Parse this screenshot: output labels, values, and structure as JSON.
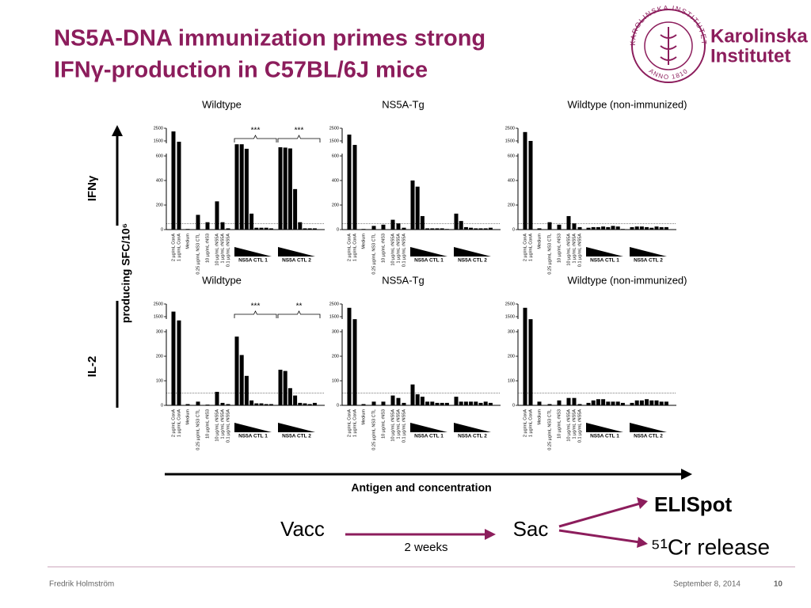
{
  "slide": {
    "title_lines": [
      "NS5A-DNA immunization primes strong",
      "IFNγ-production in C57BL/6J mice"
    ],
    "logo": [
      "Karolinska",
      "Institutet"
    ],
    "seal": [
      "KAROLINSKA INSTITUTET",
      "ANNO 1810"
    ]
  },
  "row_labels": [
    "IFNγ",
    "producing SFC/10⁶",
    "IL-2"
  ],
  "x_axis_label": "Antigen and concentration",
  "flow": {
    "vacc": "Vacc",
    "sac": "Sac",
    "interval": "2 weeks",
    "outputs": [
      "ELISpot",
      "⁵¹Cr release"
    ]
  },
  "footer": {
    "author": "Fredrik Holmström",
    "date": "September 8, 2014",
    "page": "10"
  },
  "chart_data": [
    {
      "type": "bar",
      "title": "Wildtype",
      "categories": [
        "2 µg/mL ConA",
        "1 µg/mL ConA",
        "Medium",
        "0.25 µg/mL NS3 CTL",
        "10 µg/mL rNS3",
        "10 µg/mL rNS5A",
        "1 µg/mL rNS5A",
        "0.1 µg/mL rNS5A",
        null,
        null,
        null,
        null,
        null,
        null,
        null,
        null,
        null,
        null,
        null,
        null,
        null,
        null,
        null,
        null
      ],
      "values": [
        2250,
        1450,
        5,
        120,
        60,
        230,
        60,
        10,
        1300,
        1300,
        1030,
        130,
        15,
        15,
        15,
        10,
        1120,
        1100,
        1050,
        330,
        60,
        10,
        10,
        10
      ],
      "color": "#000000",
      "ylim": [
        0,
        2500
      ],
      "yticks": [
        0,
        200,
        400,
        600,
        1500,
        2500
      ],
      "cutoff": 50,
      "group_labels": [
        "NS5A CTL 1",
        "NS5A CTL 2"
      ],
      "annotations": [
        "***",
        "***"
      ]
    },
    {
      "type": "bar",
      "title": "NS5A-Tg",
      "categories": [
        "2 µg/mL ConA",
        "1 µg/mL ConA",
        "Medium",
        "0.25 µg/mL NS3 CTL",
        "10 µg/mL rNS3",
        "10 µg/mL rNS5A",
        "1 µg/mL rNS5A",
        "0.1 µg/mL rNS5A",
        null,
        null,
        null,
        null,
        null,
        null,
        null,
        null,
        null,
        null,
        null,
        null,
        null,
        null,
        null,
        null
      ],
      "values": [
        2000,
        1260,
        5,
        30,
        40,
        80,
        50,
        15,
        400,
        350,
        110,
        10,
        10,
        10,
        10,
        5,
        130,
        70,
        20,
        15,
        10,
        10,
        10,
        15
      ],
      "color": "#000000",
      "ylim": [
        0,
        2500
      ],
      "yticks": [
        0,
        200,
        400,
        600,
        1500,
        2500
      ],
      "cutoff": 50,
      "group_labels": [
        "NS5A CTL 1",
        "NS5A CTL 2"
      ],
      "annotations": []
    },
    {
      "type": "bar",
      "title": "Wildtype (non-immunized)",
      "categories": [
        "2 µg/mL ConA",
        "1 µg/mL ConA",
        "Medium",
        "0.25 µg/mL NS3 CTL",
        "10 µg/mL rNS3",
        "10 µg/mL rNS5A",
        "1 µg/mL rNS5A",
        "0.1 µg/mL rNS5A",
        null,
        null,
        null,
        null,
        null,
        null,
        null,
        null,
        null,
        null,
        null,
        null,
        null,
        null,
        null,
        null
      ],
      "values": [
        2200,
        1500,
        10,
        60,
        40,
        110,
        50,
        20,
        15,
        20,
        20,
        25,
        20,
        30,
        25,
        5,
        20,
        25,
        25,
        20,
        15,
        25,
        20,
        20
      ],
      "color": "#000000",
      "ylim": [
        0,
        2500
      ],
      "yticks": [
        0,
        200,
        400,
        600,
        1500,
        2500
      ],
      "cutoff": 50,
      "group_labels": [
        "NS5A CTL 1",
        "NS5A CTL 2"
      ],
      "annotations": []
    },
    {
      "type": "bar",
      "title": "Wildtype",
      "categories": [
        "2 µg/mL ConA",
        "1 µg/mL ConA",
        "Medium",
        "0.25 µg/mL NS3 CTL",
        "10 µg/mL rNS3",
        "10 µg/mL rNS5A",
        "1 µg/mL rNS5A",
        "0.1 µg/mL rNS5A",
        null,
        null,
        null,
        null,
        null,
        null,
        null,
        null,
        null,
        null,
        null,
        null,
        null,
        null,
        null,
        null
      ],
      "values": [
        1900,
        1200,
        5,
        15,
        3,
        55,
        10,
        5,
        280,
        205,
        120,
        20,
        8,
        8,
        5,
        5,
        145,
        140,
        70,
        40,
        10,
        8,
        5,
        10
      ],
      "color": "#000000",
      "ylim": [
        0,
        2500
      ],
      "yticks": [
        0,
        100,
        200,
        300,
        1500,
        2500
      ],
      "cutoff": 50,
      "group_labels": [
        "NS5A CTL 1",
        "NS5A CTL 2"
      ],
      "annotations": [
        "***",
        "**"
      ]
    },
    {
      "type": "bar",
      "title": "NS5A-Tg",
      "categories": [
        "2 µg/mL ConA",
        "1 µg/mL ConA",
        "Medium",
        "0.25 µg/mL NS3 CTL",
        "10 µg/mL rNS3",
        "10 µg/mL rNS5A",
        "1 µg/mL rNS5A",
        "0.1 µg/mL rNS5A",
        null,
        null,
        null,
        null,
        null,
        null,
        null,
        null,
        null,
        null,
        null,
        null,
        null,
        null,
        null,
        null
      ],
      "values": [
        2200,
        1300,
        5,
        15,
        15,
        40,
        30,
        10,
        85,
        45,
        35,
        15,
        15,
        10,
        10,
        10,
        35,
        15,
        15,
        15,
        15,
        10,
        15,
        10
      ],
      "color": "#000000",
      "ylim": [
        0,
        2500
      ],
      "yticks": [
        0,
        100,
        200,
        300,
        1500,
        2500
      ],
      "cutoff": 50,
      "group_labels": [
        "NS5A CTL 1",
        "NS5A CTL 2"
      ],
      "annotations": []
    },
    {
      "type": "bar",
      "title": "Wildtype (non-immunized)",
      "categories": [
        "2 µg/mL ConA",
        "1 µg/mL ConA",
        "Medium",
        "0.25 µg/mL NS3 CTL",
        "10 µg/mL rNS3",
        "10 µg/mL rNS5A",
        "1 µg/mL rNS5A",
        "0.1 µg/mL rNS5A",
        null,
        null,
        null,
        null,
        null,
        null,
        null,
        null,
        null,
        null,
        null,
        null,
        null,
        null,
        null,
        null
      ],
      "values": [
        2200,
        1300,
        15,
        5,
        20,
        30,
        30,
        5,
        10,
        20,
        25,
        25,
        15,
        15,
        15,
        10,
        10,
        20,
        20,
        25,
        20,
        20,
        15,
        15
      ],
      "color": "#000000",
      "ylim": [
        0,
        2500
      ],
      "yticks": [
        0,
        100,
        200,
        300,
        1500,
        2500
      ],
      "cutoff": 50,
      "group_labels": [
        "NS5A CTL 1",
        "NS5A CTL 2"
      ],
      "annotations": []
    }
  ]
}
